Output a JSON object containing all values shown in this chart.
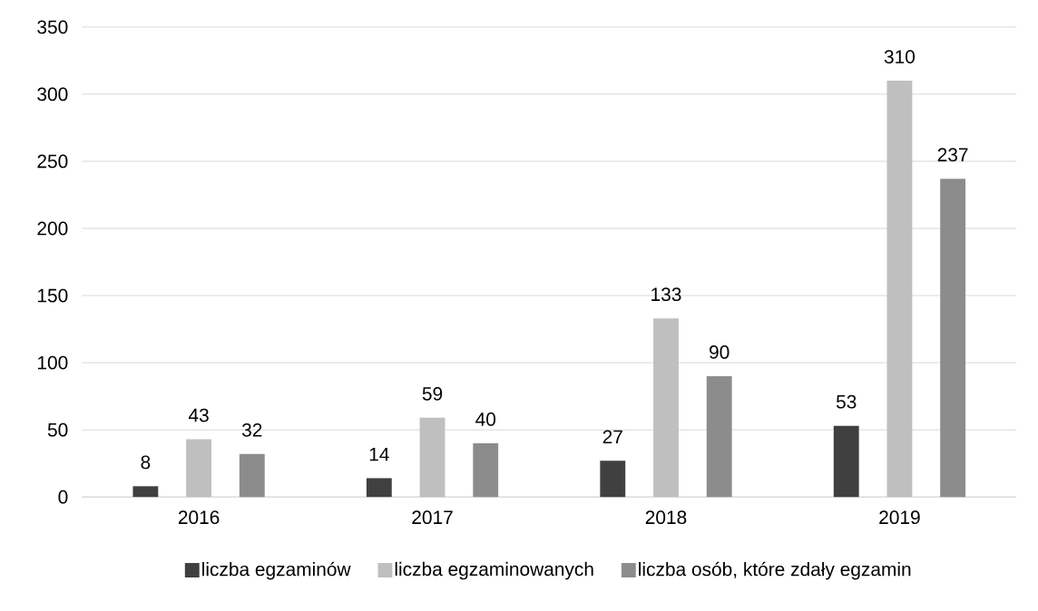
{
  "chart_data": {
    "type": "bar",
    "categories": [
      "2016",
      "2017",
      "2018",
      "2019"
    ],
    "series": [
      {
        "name": "liczba egzaminów",
        "color": "#404040",
        "values": [
          8,
          14,
          27,
          53
        ]
      },
      {
        "name": "liczba egzaminowanych",
        "color": "#bfbfbf",
        "values": [
          43,
          59,
          133,
          310
        ]
      },
      {
        "name": "liczba osób, które zdały egzamin",
        "color": "#8c8c8c",
        "values": [
          32,
          40,
          90,
          237
        ]
      }
    ],
    "ylim": [
      0,
      350
    ],
    "yticks": [
      0,
      50,
      100,
      150,
      200,
      250,
      300,
      350
    ],
    "grid": "y",
    "legend": "bottom",
    "data_labels": true
  }
}
